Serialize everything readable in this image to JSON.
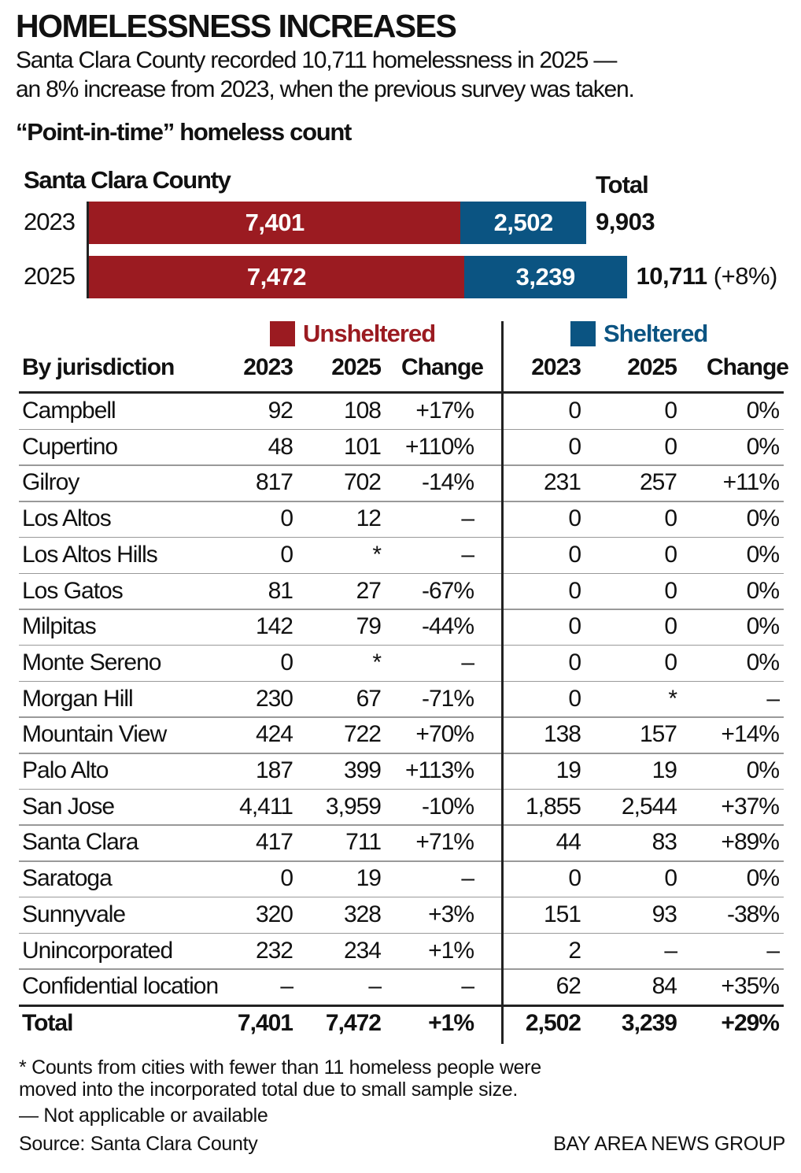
{
  "title": "HOMELESSNESS INCREASES",
  "subtitle_lines": [
    "Santa Clara County recorded 10,711 homelessness in 2025 —",
    "an 8% increase from 2023, when the previous survey was taken."
  ],
  "subhead": "“Point-in-time” homeless count",
  "colors": {
    "unsheltered": "#9b1b21",
    "sheltered": "#0b5482"
  },
  "chart_data": {
    "type": "bar",
    "stacked": true,
    "orientation": "horizontal",
    "title": "Santa Clara County",
    "categories": [
      "2023",
      "2025"
    ],
    "series": [
      {
        "name": "Unsheltered",
        "values": [
          7401,
          7472
        ],
        "labels": [
          "7,401",
          "7,472"
        ]
      },
      {
        "name": "Sheltered",
        "values": [
          2502,
          3239
        ],
        "labels": [
          "2,502",
          "3,239"
        ]
      }
    ],
    "total_header": "Total",
    "totals": [
      "9,903",
      "10,711"
    ],
    "total_notes": [
      "",
      "(+8%)"
    ]
  },
  "table": {
    "legend_unsheltered": "Unsheltered",
    "legend_sheltered": "Sheltered",
    "headers": [
      "By jurisdiction",
      "2023",
      "2025",
      "Change",
      "2023",
      "2025",
      "Change"
    ],
    "rows": [
      [
        "Campbell",
        "92",
        "108",
        "+17%",
        "0",
        "0",
        "0%"
      ],
      [
        "Cupertino",
        "48",
        "101",
        "+110%",
        "0",
        "0",
        "0%"
      ],
      [
        "Gilroy",
        "817",
        "702",
        "-14%",
        "231",
        "257",
        "+11%"
      ],
      [
        "Los Altos",
        "0",
        "12",
        "–",
        "0",
        "0",
        "0%"
      ],
      [
        "Los Altos Hills",
        "0",
        "*",
        "–",
        "0",
        "0",
        "0%"
      ],
      [
        "Los Gatos",
        "81",
        "27",
        "-67%",
        "0",
        "0",
        "0%"
      ],
      [
        "Milpitas",
        "142",
        "79",
        "-44%",
        "0",
        "0",
        "0%"
      ],
      [
        "Monte Sereno",
        "0",
        "*",
        "–",
        "0",
        "0",
        "0%"
      ],
      [
        "Morgan Hill",
        "230",
        "67",
        "-71%",
        "0",
        "*",
        "–"
      ],
      [
        "Mountain View",
        "424",
        "722",
        "+70%",
        "138",
        "157",
        "+14%"
      ],
      [
        "Palo Alto",
        "187",
        "399",
        "+113%",
        "19",
        "19",
        "0%"
      ],
      [
        "San Jose",
        "4,411",
        "3,959",
        "-10%",
        "1,855",
        "2,544",
        "+37%"
      ],
      [
        "Santa Clara",
        "417",
        "711",
        "+71%",
        "44",
        "83",
        "+89%"
      ],
      [
        "Saratoga",
        "0",
        "19",
        "–",
        "0",
        "0",
        "0%"
      ],
      [
        "Sunnyvale",
        "320",
        "328",
        "+3%",
        "151",
        "93",
        "-38%"
      ],
      [
        "Unincorporated",
        "232",
        "234",
        "+1%",
        "2",
        "–",
        "–"
      ],
      [
        "Confidential location",
        "–",
        "–",
        "–",
        "62",
        "84",
        "+35%"
      ]
    ],
    "total": [
      "Total",
      "7,401",
      "7,472",
      "+1%",
      "2,502",
      "3,239",
      "+29%"
    ]
  },
  "footnotes": [
    "* Counts from cities with fewer than 11 homeless people were",
    "moved into the incorporated total due to small sample size.",
    "— Not applicable or available"
  ],
  "source": "Source: Santa Clara County",
  "credit": "BAY AREA NEWS GROUP"
}
